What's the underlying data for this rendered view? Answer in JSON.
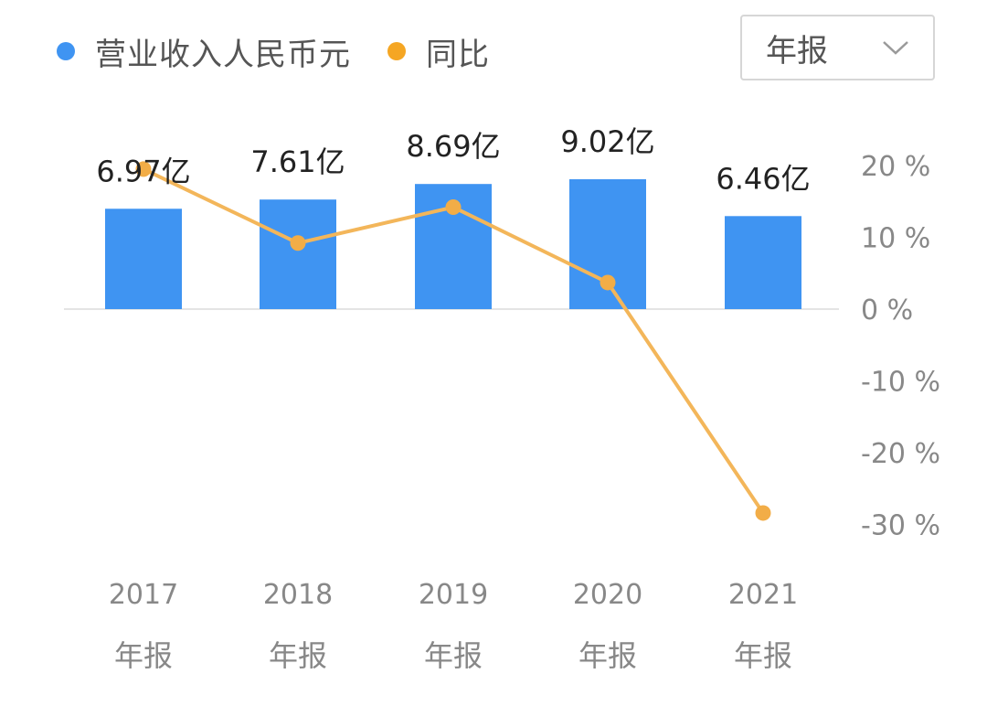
{
  "legend": [
    {
      "label": "营业收入人民币元",
      "color": "#3f94f2"
    },
    {
      "label": "同比",
      "color": "#f5a623"
    }
  ],
  "period_select": {
    "selected": "年报",
    "icon": "chevron-down-icon"
  },
  "colors": {
    "bar": "#3f94f2",
    "line": "#f3b65a",
    "point": "#f2ad47",
    "axis_text": "#888888",
    "label_text": "#222222"
  },
  "chart_data": {
    "type": "bar+line",
    "categories": [
      {
        "year": "2017",
        "period": "年报"
      },
      {
        "year": "2018",
        "period": "年报"
      },
      {
        "year": "2019",
        "period": "年报"
      },
      {
        "year": "2020",
        "period": "年报"
      },
      {
        "year": "2021",
        "period": "年报"
      }
    ],
    "series": [
      {
        "name": "营业收入人民币元",
        "type": "bar",
        "unit": "亿",
        "values": [
          6.97,
          7.61,
          8.69,
          9.02,
          6.46
        ],
        "labels": [
          "6.97亿",
          "7.61亿",
          "8.69亿",
          "9.02亿",
          "6.46亿"
        ]
      },
      {
        "name": "同比",
        "type": "line",
        "axis": "right",
        "unit": "%",
        "values": [
          19.5,
          9.2,
          14.2,
          3.7,
          -28.4
        ]
      }
    ],
    "right_axis": {
      "ticks": [
        "20 %",
        "10 %",
        "0 %",
        "-10 %",
        "-20 %",
        "-30 %"
      ],
      "values": [
        20,
        10,
        0,
        -10,
        -20,
        -30
      ],
      "range": [
        -30,
        20
      ]
    },
    "bar_axis_range": [
      0,
      9.02
    ]
  }
}
